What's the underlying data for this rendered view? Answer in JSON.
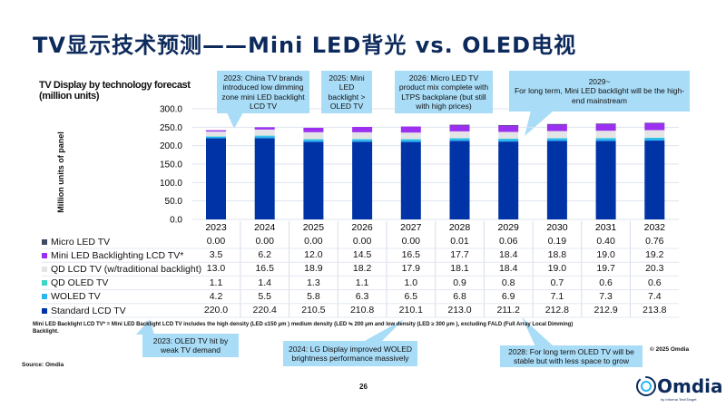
{
  "title": "TV显示技术预测——Mini LED背光 vs. OLED电视",
  "chart_data": {
    "type": "bar",
    "stacked": true,
    "title": "TV Display by technology forecast\n(million units)",
    "ylabel": "Million units of panel",
    "ylim": [
      0,
      300
    ],
    "yticks": [
      "0.0",
      "50.0",
      "100.0",
      "150.0",
      "200.0",
      "250.0",
      "300.0"
    ],
    "grid": true,
    "categories": [
      "2023",
      "2024",
      "2025",
      "2026",
      "2027",
      "2028",
      "2029",
      "2030",
      "2031",
      "2032"
    ],
    "series": [
      {
        "name": "Micro LED TV",
        "color": "#3d4a63",
        "values": [
          "0.00",
          "0.00",
          "0.00",
          "0.00",
          "0.00",
          "0.01",
          "0.06",
          "0.19",
          "0.40",
          "0.76"
        ]
      },
      {
        "name": "Mini LED Backlighting LCD TV*",
        "color": "#9b30f0",
        "values": [
          "3.5",
          "6.2",
          "12.0",
          "14.5",
          "16.5",
          "17.7",
          "18.4",
          "18.8",
          "19.0",
          "19.2"
        ]
      },
      {
        "name": "QD LCD TV (w/traditional backlight)",
        "color": "#e4e4e6",
        "values": [
          "13.0",
          "16.5",
          "18.9",
          "18.2",
          "17.9",
          "18.1",
          "18.4",
          "19.0",
          "19.7",
          "20.3"
        ]
      },
      {
        "name": "QD OLED TV",
        "color": "#3dd6c6",
        "values": [
          "1.1",
          "1.4",
          "1.3",
          "1.1",
          "1.0",
          "0.9",
          "0.8",
          "0.7",
          "0.6",
          "0.6"
        ]
      },
      {
        "name": "WOLED TV",
        "color": "#2bb5f5",
        "values": [
          "4.2",
          "5.5",
          "5.8",
          "6.3",
          "6.5",
          "6.8",
          "6.9",
          "7.1",
          "7.3",
          "7.4"
        ]
      },
      {
        "name": "Standard LCD TV",
        "color": "#0033a6",
        "values": [
          "220.0",
          "220.4",
          "210.5",
          "210.8",
          "210.1",
          "213.0",
          "211.2",
          "212.8",
          "212.9",
          "213.8"
        ]
      }
    ]
  },
  "footnote": "Mini LED Backlight LCD TV* = Mini LED Backlight LCD TV includes the high density (LED ≤150 μm ) medium density (LED ≒ 200 μm and low density (LED ≥ 300 μm ), excluding FALD (Full Array Local Dimming) Backlight.",
  "source": "Source: Omdia",
  "copyright": "© 2025 Omdia",
  "page_number": "26",
  "logo": {
    "name": "Omdia",
    "tagline": "by Informa TechTarget"
  },
  "callouts": [
    "2023: China TV brands introduced low dimming zone mini LED backlight LCD TV",
    "2025: Mini LED backlight > OLED TV",
    "2026: Micro LED TV product mix complete with LTPS backplane (but still with high prices)",
    "2029~\nFor long term, Mini LED backlight will be the high-end mainstream",
    "2023: OLED TV hit by weak TV demand",
    "2024: LG Display improved WOLED brightness performance massively",
    "2028: For long term OLED TV will be stable but with less space to grow"
  ]
}
